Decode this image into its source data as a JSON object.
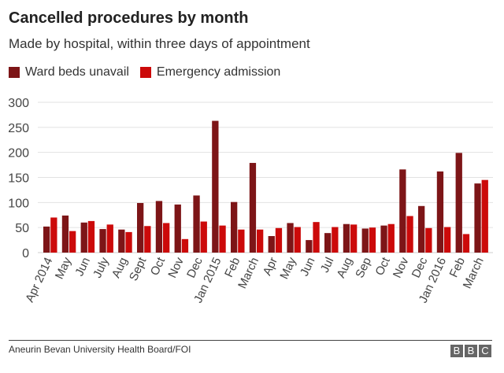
{
  "chart_data": {
    "type": "bar",
    "title": "Cancelled procedures by month",
    "subtitle": "Made by hospital, within three days of appointment",
    "categories": [
      "Apr 2014",
      "May",
      "Jun",
      "July",
      "Aug",
      "Sept",
      "Oct",
      "Nov",
      "Dec",
      "Jan 2015",
      "Feb",
      "March",
      "Apr",
      "May",
      "Jun",
      "Jul",
      "Aug",
      "Sep",
      "Oct",
      "Nov",
      "Dec",
      "Jan 2016",
      "Feb",
      "March"
    ],
    "series": [
      {
        "name": "Ward beds unavail",
        "color": "#7d1517",
        "values": [
          52,
          74,
          60,
          47,
          46,
          99,
          103,
          96,
          114,
          263,
          101,
          179,
          33,
          59,
          25,
          39,
          57,
          48,
          54,
          166,
          93,
          162,
          199,
          138
        ]
      },
      {
        "name": "Emergency admission",
        "color": "#cc0a0a",
        "values": [
          70,
          43,
          63,
          56,
          41,
          53,
          59,
          27,
          62,
          54,
          46,
          46,
          49,
          51,
          61,
          51,
          56,
          50,
          57,
          73,
          49,
          51,
          37,
          145
        ]
      }
    ],
    "xlabel": "",
    "ylabel": "",
    "ylim": [
      0,
      300
    ],
    "yticks": [
      0,
      50,
      100,
      150,
      200,
      250,
      300
    ],
    "grid": true,
    "legend": "top-left"
  },
  "footer": {
    "source": "Aneurin Bevan University Health Board/FOI",
    "logo": "BBC"
  }
}
